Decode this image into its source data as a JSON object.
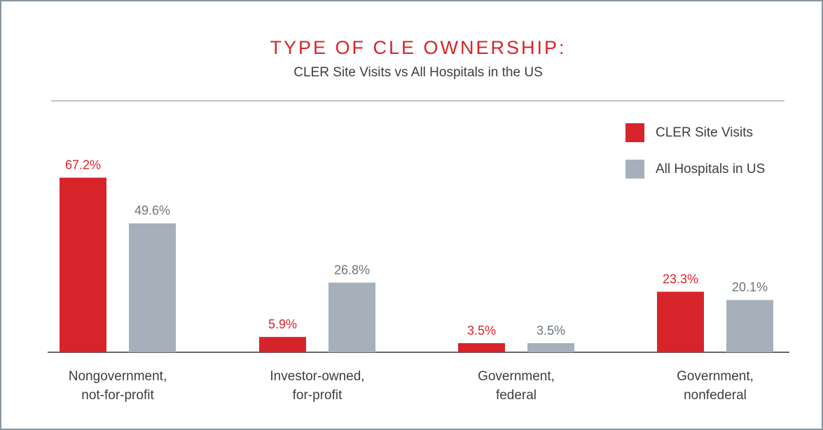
{
  "chart_data": {
    "type": "bar",
    "title": "TYPE OF CLE OWNERSHIP:",
    "subtitle": "CLER Site Visits vs All Hospitals in the US",
    "categories": [
      "Nongovernment,\nnot-for-profit",
      "Investor-owned,\nfor-profit",
      "Government,\nfederal",
      "Government,\nnonfederal"
    ],
    "series": [
      {
        "name": "CLER Site Visits",
        "color": "#d7242b",
        "values": [
          67.2,
          5.9,
          3.5,
          23.3
        ],
        "value_labels": [
          "67.2%",
          "5.9%",
          "3.5%",
          "23.3%"
        ]
      },
      {
        "name": "All Hospitals in US",
        "color": "#a5b0ba",
        "values": [
          49.6,
          26.8,
          3.5,
          20.1
        ],
        "value_labels": [
          "49.6%",
          "26.8%",
          "3.5%",
          "20.1%"
        ]
      }
    ],
    "legend": "top-right"
  }
}
